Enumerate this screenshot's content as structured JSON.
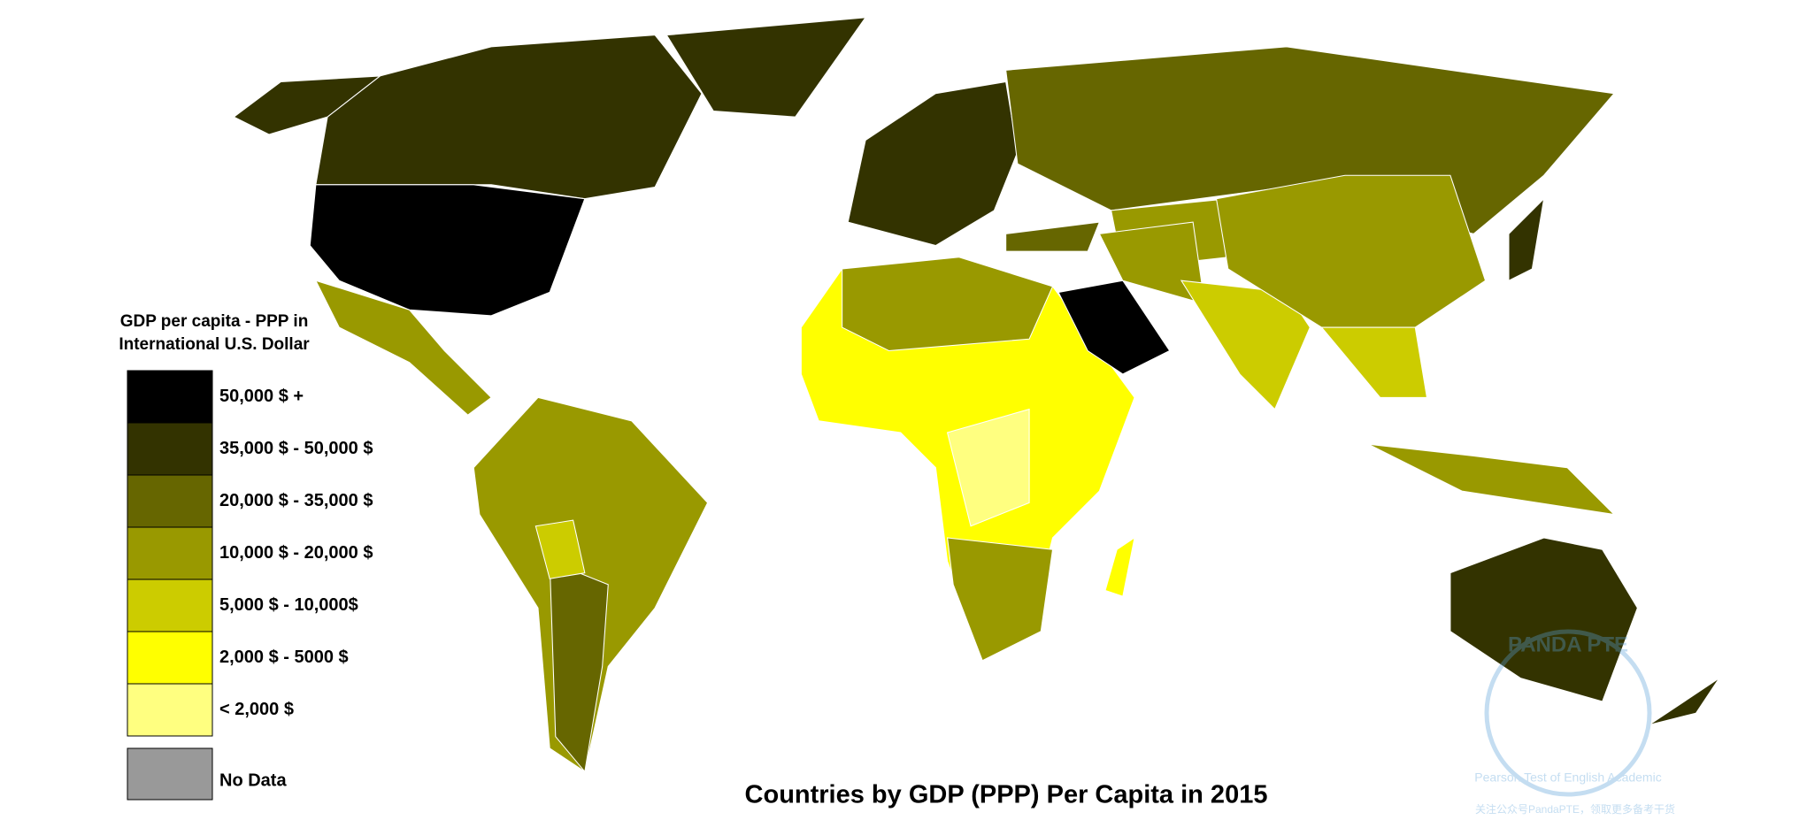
{
  "title": "Countries by GDP (PPP) Per Capita in 2015",
  "legend": {
    "title_lines": [
      "GDP per capita - PPP in",
      "International U.S. Dollar"
    ],
    "items": [
      {
        "label": "50,000 $ +",
        "color": "#000000"
      },
      {
        "label": "35,000 $ - 50,000 $",
        "color": "#333300"
      },
      {
        "label": "20,000 $ - 35,000 $",
        "color": "#666600"
      },
      {
        "label": "10,000 $ - 20,000 $",
        "color": "#999900"
      },
      {
        "label": "5,000 $ - 10,000$",
        "color": "#cccc00"
      },
      {
        "label": "2,000 $ - 5000 $",
        "color": "#ffff00"
      },
      {
        "label": "< 2,000 $",
        "color": "#ffff80"
      }
    ],
    "no_data": {
      "label": "No Data",
      "color": "#999999"
    }
  },
  "watermark": {
    "brand": "PANDA PTE",
    "subtitle": "Pearson Test of English Academic",
    "note": "关注公众号PandaPTE，领取更多备考干货"
  }
}
